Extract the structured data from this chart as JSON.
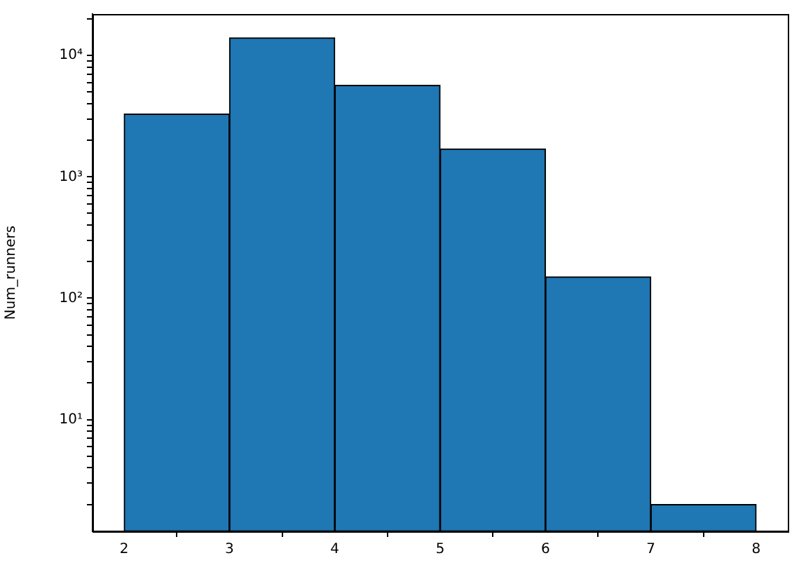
{
  "chart_data": {
    "type": "histogram",
    "ylabel": "Num_runners",
    "bins": [
      2,
      3,
      4,
      5,
      6,
      7,
      8
    ],
    "values": [
      3300,
      14000,
      5700,
      1700,
      150,
      2
    ],
    "color": "#1f77b4",
    "log": "y",
    "xlim": [
      1.7,
      8.3
    ],
    "xticks": [
      2,
      3,
      4,
      5,
      6,
      7,
      8
    ],
    "ylim": [
      1.2,
      22000
    ],
    "yticks": [
      {
        "value": 2,
        "label": null
      },
      {
        "value": 3,
        "label": null
      },
      {
        "value": 4,
        "label": null
      },
      {
        "value": 5,
        "label": null
      },
      {
        "value": 6,
        "label": null
      },
      {
        "value": 7,
        "label": null
      },
      {
        "value": 8,
        "label": null
      },
      {
        "value": 9,
        "label": null
      },
      {
        "value": 10,
        "label": "10¹"
      },
      {
        "value": 20,
        "label": null
      },
      {
        "value": 30,
        "label": null
      },
      {
        "value": 40,
        "label": null
      },
      {
        "value": 50,
        "label": null
      },
      {
        "value": 60,
        "label": null
      },
      {
        "value": 70,
        "label": null
      },
      {
        "value": 80,
        "label": null
      },
      {
        "value": 90,
        "label": null
      },
      {
        "value": 100,
        "label": "10²"
      },
      {
        "value": 200,
        "label": null
      },
      {
        "value": 300,
        "label": null
      },
      {
        "value": 400,
        "label": null
      },
      {
        "value": 500,
        "label": null
      },
      {
        "value": 600,
        "label": null
      },
      {
        "value": 700,
        "label": null
      },
      {
        "value": 800,
        "label": null
      },
      {
        "value": 900,
        "label": null
      },
      {
        "value": 1000,
        "label": "10³"
      },
      {
        "value": 2000,
        "label": null
      },
      {
        "value": 3000,
        "label": null
      },
      {
        "value": 4000,
        "label": null
      },
      {
        "value": 5000,
        "label": null
      },
      {
        "value": 6000,
        "label": null
      },
      {
        "value": 7000,
        "label": null
      },
      {
        "value": 8000,
        "label": null
      },
      {
        "value": 9000,
        "label": null
      },
      {
        "value": 10000,
        "label": "10⁴"
      },
      {
        "value": 20000,
        "label": null
      }
    ]
  }
}
